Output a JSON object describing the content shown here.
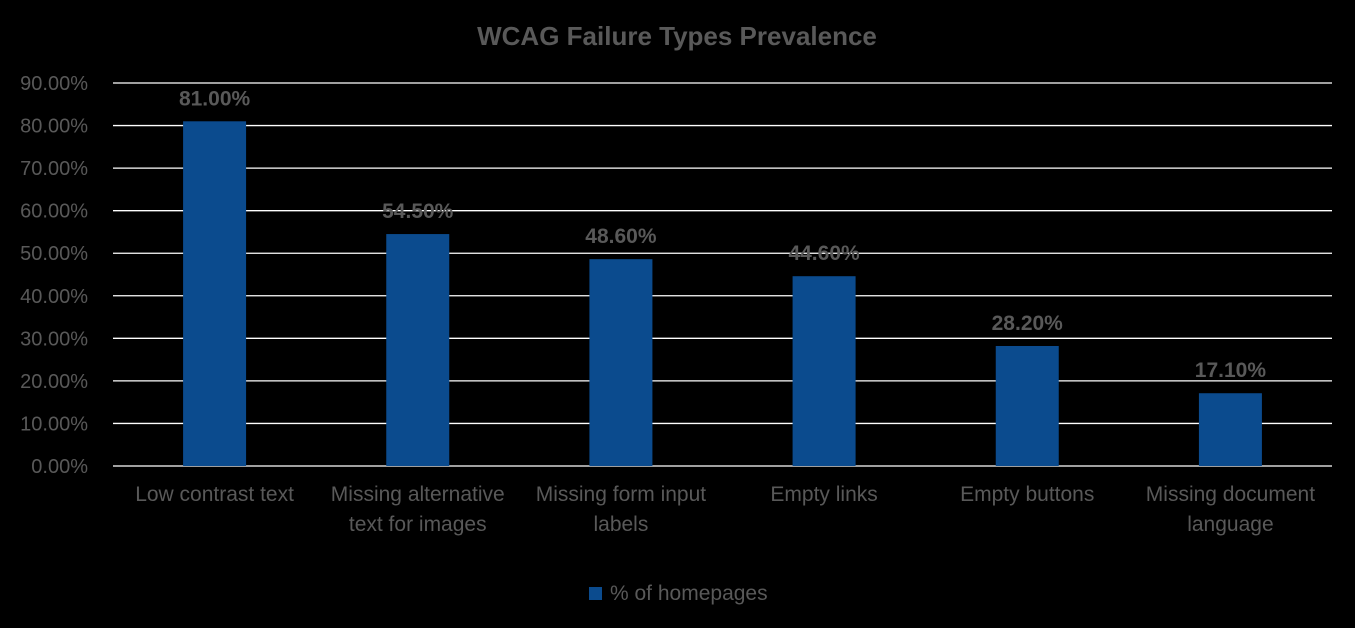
{
  "chart_data": {
    "type": "bar",
    "title": "WCAG Failure Types Prevalence",
    "categories": [
      [
        "Low contrast text"
      ],
      [
        "Missing alternative",
        "text for images"
      ],
      [
        "Missing form input",
        "labels"
      ],
      [
        "Empty links"
      ],
      [
        "Empty buttons"
      ],
      [
        "Missing document",
        "language"
      ]
    ],
    "series": [
      {
        "name": "% of homepages",
        "values": [
          81.0,
          54.5,
          48.6,
          44.6,
          28.2,
          17.1
        ],
        "data_labels": [
          "81.00%",
          "54.50%",
          "48.60%",
          "44.60%",
          "28.20%",
          "17.10%"
        ]
      }
    ],
    "y_ticks": [
      "0.00%",
      "10.00%",
      "20.00%",
      "30.00%",
      "40.00%",
      "50.00%",
      "60.00%",
      "70.00%",
      "80.00%",
      "90.00%"
    ],
    "ylim": [
      0,
      90
    ],
    "grid": true,
    "legend_position": "bottom",
    "colors": {
      "bar": "#0b4b8e",
      "background": "#000000",
      "text": "#595959",
      "grid": "#ffffff"
    }
  }
}
